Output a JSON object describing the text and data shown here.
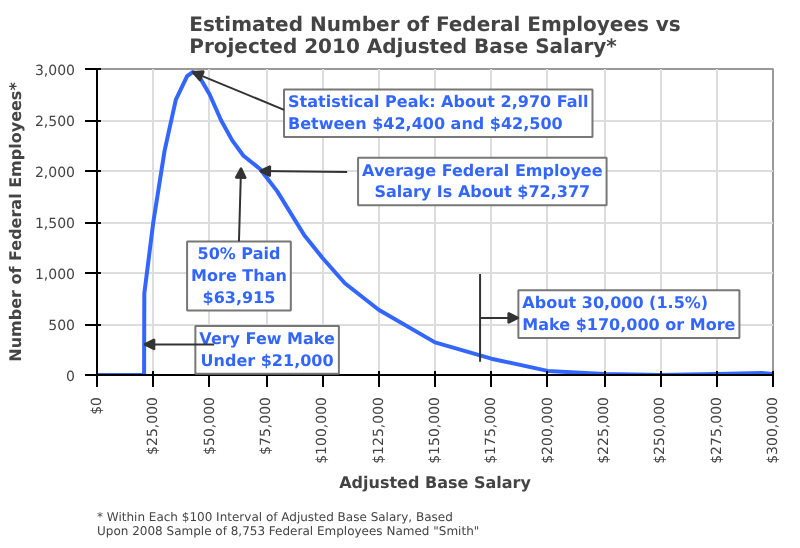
{
  "chart_data": {
    "type": "line",
    "title": "Estimated Number of Federal Employees vs\nProjected 2010 Adjusted Base Salary*",
    "xlabel": "Adjusted Base Salary",
    "ylabel": "Number of Federal Employees*",
    "x": [
      0,
      20900,
      21000,
      25000,
      30000,
      35000,
      40000,
      42450,
      45000,
      50000,
      55000,
      60000,
      65000,
      72377,
      80000,
      92000,
      100000,
      110000,
      125000,
      150000,
      175000,
      200000,
      225000,
      250000,
      275000,
      295000,
      300000
    ],
    "series": [
      {
        "color": "#3366ff",
        "values": [
          0,
          0,
          800,
          1500,
          2200,
          2700,
          2930,
          2970,
          2940,
          2750,
          2500,
          2300,
          2150,
          2020,
          1800,
          1370,
          1150,
          900,
          640,
          320,
          160,
          40,
          10,
          0,
          10,
          20,
          10
        ]
      }
    ],
    "ref_lines": [
      {
        "axis": "x",
        "value": 170000
      }
    ],
    "xlim": [
      0,
      300000
    ],
    "ylim": [
      0,
      3000
    ],
    "xticks": [
      {
        "value": 0,
        "label": "$0"
      },
      {
        "value": 25000,
        "label": "$25,000"
      },
      {
        "value": 50000,
        "label": "$50,000"
      },
      {
        "value": 75000,
        "label": "$75,000"
      },
      {
        "value": 100000,
        "label": "$100,000"
      },
      {
        "value": 125000,
        "label": "$125,000"
      },
      {
        "value": 150000,
        "label": "$150,000"
      },
      {
        "value": 175000,
        "label": "$175,000"
      },
      {
        "value": 200000,
        "label": "$200,000"
      },
      {
        "value": 225000,
        "label": "$225,000"
      },
      {
        "value": 250000,
        "label": "$250,000"
      },
      {
        "value": 275000,
        "label": "$275,000"
      },
      {
        "value": 300000,
        "label": "$300,000"
      }
    ],
    "yticks": [
      0,
      500,
      {
        "value": 1000,
        "label": "1,000"
      },
      {
        "value": 1500,
        "label": "1,500"
      },
      {
        "value": 2000,
        "label": "2,000"
      },
      {
        "value": 2500,
        "label": "2,500"
      },
      {
        "value": 3000,
        "label": "3,000"
      }
    ],
    "grid": true,
    "marker": "none",
    "line_style": "solid",
    "annotations": [
      {
        "text": "Statistical Peak: About 2,970 Fall\nBetween $42,400 and $42,500",
        "x": 42450,
        "y": 2970
      },
      {
        "text": "Average Federal Employee\nSalary Is About $72,377",
        "x": 72377,
        "y": 2000
      },
      {
        "text": "50% Paid\nMore Than\n$63,915",
        "x": 63915,
        "y": 2030
      },
      {
        "text": "Very Few Make\nUnder $21,000",
        "x": 21000,
        "y": 300
      },
      "About 30,000 (1.5%)\nMake $170,000 or More",
      "* Within Each $100 Interval of Adjusted Base Salary, Based\nUpon 2008 Sample of 8,753 Federal Employees Named \"Smith\""
    ]
  }
}
